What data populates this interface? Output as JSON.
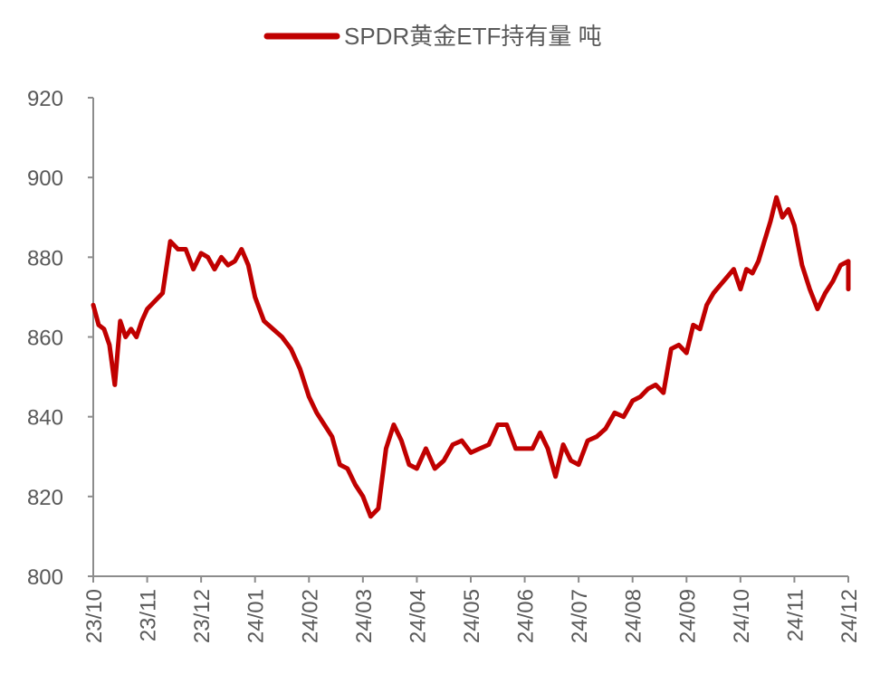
{
  "chart_data": {
    "type": "line",
    "title": "",
    "xlabel": "",
    "ylabel": "",
    "ylim": [
      800,
      920
    ],
    "yticks": [
      800,
      820,
      840,
      860,
      880,
      900,
      920
    ],
    "xticks": [
      "23/10",
      "23/11",
      "23/12",
      "24/01",
      "24/02",
      "24/03",
      "24/04",
      "24/05",
      "24/06",
      "24/07",
      "24/08",
      "24/09",
      "24/10",
      "24/11",
      "24/12"
    ],
    "grid": false,
    "legend_position": "top",
    "colors": {
      "series": "#c00000",
      "axis": "#8c8c8c",
      "text": "#595959"
    },
    "series": [
      {
        "name": "SPDR黄金ETF持有量 吨",
        "points": [
          [
            "23/10",
            868
          ],
          [
            "23/10",
            863
          ],
          [
            "23/10",
            862
          ],
          [
            "23/10",
            858
          ],
          [
            "23/10",
            848
          ],
          [
            "23/10",
            864
          ],
          [
            "23/10",
            860
          ],
          [
            "23/10",
            862
          ],
          [
            "23/10",
            860
          ],
          [
            "23/10",
            864
          ],
          [
            "23/11",
            867
          ],
          [
            "23/11",
            869
          ],
          [
            "23/11",
            871
          ],
          [
            "23/11",
            884
          ],
          [
            "23/11",
            882
          ],
          [
            "23/11",
            882
          ],
          [
            "23/11",
            877
          ],
          [
            "23/12",
            881
          ],
          [
            "23/12",
            880
          ],
          [
            "23/12",
            877
          ],
          [
            "23/12",
            880
          ],
          [
            "23/12",
            878
          ],
          [
            "23/12",
            879
          ],
          [
            "23/12",
            882
          ],
          [
            "23/12",
            878
          ],
          [
            "24/01",
            870
          ],
          [
            "24/01",
            864
          ],
          [
            "24/01",
            862
          ],
          [
            "24/01",
            860
          ],
          [
            "24/01",
            857
          ],
          [
            "24/01",
            852
          ],
          [
            "24/02",
            845
          ],
          [
            "24/02",
            841
          ],
          [
            "24/02",
            838
          ],
          [
            "24/02",
            835
          ],
          [
            "24/02",
            828
          ],
          [
            "24/02",
            827
          ],
          [
            "24/02",
            823
          ],
          [
            "24/03",
            820
          ],
          [
            "24/03",
            815
          ],
          [
            "24/03",
            817
          ],
          [
            "24/03",
            832
          ],
          [
            "24/03",
            838
          ],
          [
            "24/03",
            834
          ],
          [
            "24/03",
            828
          ],
          [
            "24/04",
            827
          ],
          [
            "24/04",
            832
          ],
          [
            "24/04",
            827
          ],
          [
            "24/04",
            829
          ],
          [
            "24/04",
            833
          ],
          [
            "24/04",
            834
          ],
          [
            "24/05",
            831
          ],
          [
            "24/05",
            832
          ],
          [
            "24/05",
            833
          ],
          [
            "24/05",
            838
          ],
          [
            "24/05",
            838
          ],
          [
            "24/05",
            832
          ],
          [
            "24/06",
            832
          ],
          [
            "24/06",
            832
          ],
          [
            "24/06",
            836
          ],
          [
            "24/06",
            832
          ],
          [
            "24/06",
            825
          ],
          [
            "24/06",
            833
          ],
          [
            "24/06",
            829
          ],
          [
            "24/07",
            828
          ],
          [
            "24/07",
            834
          ],
          [
            "24/07",
            835
          ],
          [
            "24/07",
            837
          ],
          [
            "24/07",
            841
          ],
          [
            "24/07",
            840
          ],
          [
            "24/08",
            844
          ],
          [
            "24/08",
            845
          ],
          [
            "24/08",
            847
          ],
          [
            "24/08",
            848
          ],
          [
            "24/08",
            846
          ],
          [
            "24/08",
            857
          ],
          [
            "24/08",
            858
          ],
          [
            "24/09",
            856
          ],
          [
            "24/09",
            863
          ],
          [
            "24/09",
            862
          ],
          [
            "24/09",
            868
          ],
          [
            "24/09",
            871
          ],
          [
            "24/09",
            873
          ],
          [
            "24/09",
            875
          ],
          [
            "24/09",
            877
          ],
          [
            "24/10",
            872
          ],
          [
            "24/10",
            877
          ],
          [
            "24/10",
            876
          ],
          [
            "24/10",
            879
          ],
          [
            "24/10",
            884
          ],
          [
            "24/10",
            889
          ],
          [
            "24/10",
            895
          ],
          [
            "24/10",
            890
          ],
          [
            "24/10",
            892
          ],
          [
            "24/11",
            888
          ],
          [
            "24/11",
            878
          ],
          [
            "24/11",
            872
          ],
          [
            "24/11",
            867
          ],
          [
            "24/11",
            871
          ],
          [
            "24/11",
            874
          ],
          [
            "24/11",
            878
          ],
          [
            "24/12",
            879
          ],
          [
            "24/12",
            877
          ],
          [
            "24/12",
            872
          ]
        ]
      }
    ]
  }
}
